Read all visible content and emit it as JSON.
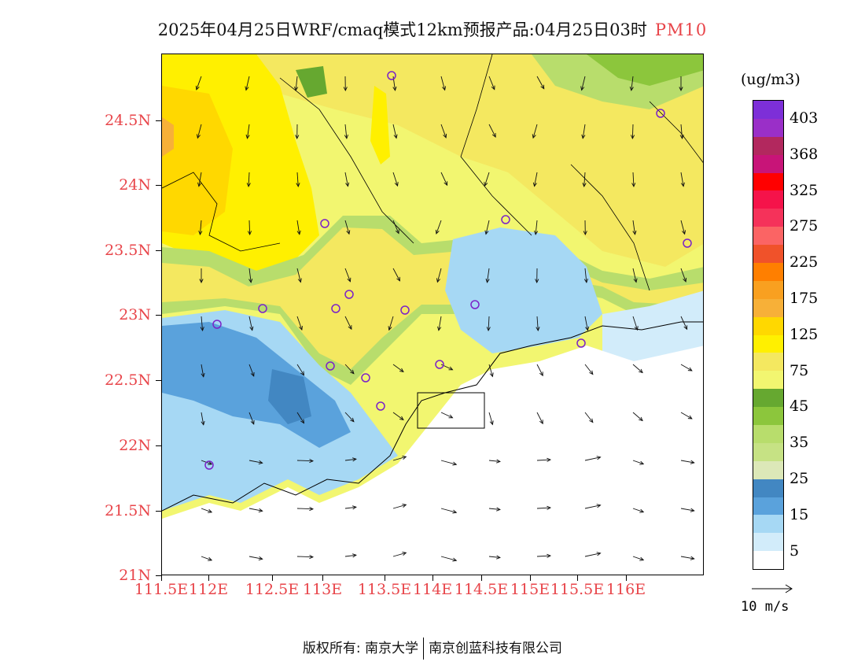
{
  "title": {
    "main": "2025年04月25日WRF/cmaq模式12km预报产品:04月25日03时",
    "variable": "PM10"
  },
  "axes": {
    "y_labels": [
      "24.5N",
      "24N",
      "23.5N",
      "23N",
      "22.5N",
      "22N",
      "21.5N",
      "21N"
    ],
    "x_labels": [
      "111.5E",
      "112E",
      "112.5E",
      "113E",
      "113.5E",
      "114E",
      "114.5E",
      "115E",
      "115.5E",
      "116E"
    ]
  },
  "colorbar": {
    "unit": "(ug/m3)",
    "labels": [
      "403",
      "368",
      "325",
      "275",
      "225",
      "175",
      "125",
      "75",
      "45",
      "35",
      "25",
      "15",
      "5"
    ],
    "colors": [
      "#7d2fd8",
      "#9a2fc8",
      "#b2285e",
      "#c81478",
      "#ff0000",
      "#f5134a",
      "#f5325a",
      "#fb6464",
      "#f0522a",
      "#ff7f00",
      "#f9a020",
      "#f7b038",
      "#ffd800",
      "#fff000",
      "#f4e860",
      "#f2f670",
      "#66a830",
      "#8cc63c",
      "#b8dd6c",
      "#c6e284",
      "#dce8b8",
      "#4287c2",
      "#5aa2dc",
      "#a6d8f4",
      "#d2ecfa",
      "#ffffff"
    ]
  },
  "reference_vector": {
    "label": "10 m/s"
  },
  "footer": {
    "left": "版权所有: 南京大学",
    "right": "南京创蓝科技有限公司"
  },
  "stations": {
    "count": 17,
    "color": "#7b22c8"
  }
}
